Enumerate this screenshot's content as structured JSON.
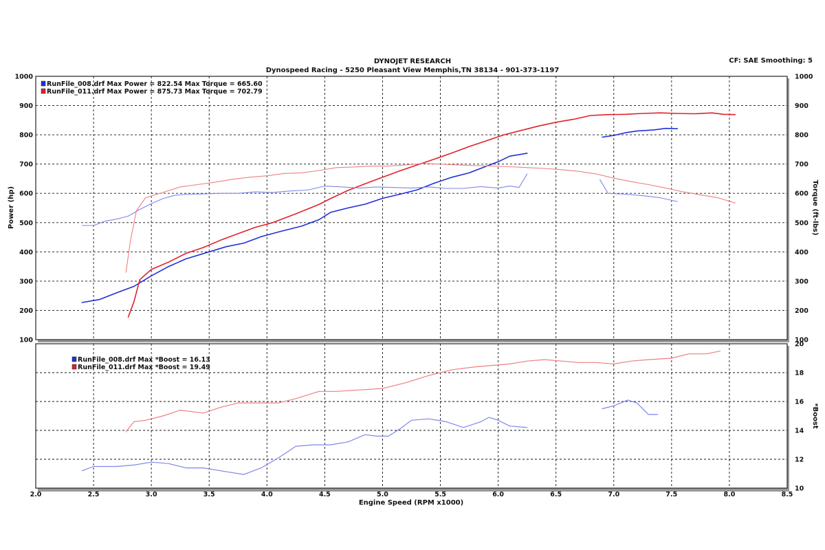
{
  "header": {
    "title": "DYNOJET RESEARCH",
    "subtitle": "Dynospeed  Racing - 5250 Pleasant View Memphis,TN 38134 - 901-373-1197",
    "settings": "CF: SAE  Smoothing: 5"
  },
  "colors": {
    "run008": "#1f2fd6",
    "run011": "#e0202a",
    "run008_light": "#7f86e8",
    "run011_light": "#ee7f7f"
  },
  "chart_data": [
    {
      "type": "line",
      "panel": "power-torque",
      "ylabel": "Power (hp)",
      "y2label": "Torque (ft-lbs)",
      "xlim": [
        2.0,
        8.5
      ],
      "ylim": [
        100,
        1000
      ],
      "y2lim": [
        100,
        1000
      ],
      "yticks": [
        "100",
        "200",
        "300",
        "400",
        "500",
        "600",
        "700",
        "800",
        "900",
        "1000"
      ],
      "grid": true,
      "legend": [
        {
          "text": "RunFile_008.drf Max Power = 822.54      Max Torque = 665.60",
          "color": "#1f2fd6"
        },
        {
          "text": "RunFile_011.drf Max Power = 875.73      Max Torque = 702.79",
          "color": "#e0202a"
        }
      ],
      "series": [
        {
          "name": "RunFile_008.drf Power",
          "color": "#1f2fd6",
          "width": 1.6,
          "segments": [
            [
              [
                2.4,
                227
              ],
              [
                2.55,
                237
              ],
              [
                2.7,
                260
              ],
              [
                2.85,
                282
              ],
              [
                3.0,
                318
              ],
              [
                3.15,
                350
              ],
              [
                3.3,
                376
              ],
              [
                3.5,
                400
              ],
              [
                3.65,
                418
              ],
              [
                3.8,
                430
              ],
              [
                3.95,
                452
              ],
              [
                4.1,
                468
              ],
              [
                4.3,
                488
              ],
              [
                4.45,
                510
              ],
              [
                4.55,
                535
              ],
              [
                4.7,
                550
              ],
              [
                4.85,
                563
              ],
              [
                5.0,
                583
              ],
              [
                5.15,
                597
              ],
              [
                5.3,
                612
              ],
              [
                5.45,
                635
              ],
              [
                5.6,
                655
              ],
              [
                5.75,
                670
              ],
              [
                5.9,
                693
              ],
              [
                6.0,
                708
              ],
              [
                6.1,
                727
              ],
              [
                6.25,
                737
              ]
            ],
            [
              [
                6.9,
                792
              ],
              [
                7.0,
                798
              ],
              [
                7.1,
                807
              ],
              [
                7.2,
                813
              ],
              [
                7.35,
                817
              ],
              [
                7.45,
                822
              ],
              [
                7.55,
                821
              ]
            ]
          ]
        },
        {
          "name": "RunFile_011.drf Power",
          "color": "#e0202a",
          "width": 1.6,
          "segments": [
            [
              [
                2.8,
                177
              ],
              [
                2.85,
                230
              ],
              [
                2.9,
                305
              ],
              [
                3.0,
                340
              ],
              [
                3.15,
                365
              ],
              [
                3.3,
                395
              ],
              [
                3.45,
                415
              ],
              [
                3.6,
                440
              ],
              [
                3.75,
                462
              ],
              [
                3.9,
                484
              ],
              [
                4.05,
                500
              ],
              [
                4.25,
                530
              ],
              [
                4.45,
                562
              ],
              [
                4.55,
                582
              ],
              [
                4.7,
                610
              ],
              [
                4.85,
                633
              ],
              [
                5.0,
                655
              ],
              [
                5.15,
                677
              ],
              [
                5.3,
                697
              ],
              [
                5.45,
                717
              ],
              [
                5.6,
                738
              ],
              [
                5.75,
                760
              ],
              [
                5.9,
                780
              ],
              [
                6.05,
                800
              ],
              [
                6.2,
                815
              ],
              [
                6.35,
                830
              ],
              [
                6.5,
                843
              ],
              [
                6.65,
                853
              ],
              [
                6.8,
                866
              ],
              [
                6.95,
                869
              ],
              [
                7.1,
                870
              ],
              [
                7.25,
                873
              ],
              [
                7.4,
                875
              ],
              [
                7.55,
                873
              ],
              [
                7.7,
                872
              ],
              [
                7.85,
                875
              ],
              [
                7.95,
                870
              ],
              [
                8.05,
                869
              ]
            ]
          ]
        },
        {
          "name": "RunFile_008.drf Torque",
          "color": "#7f86e8",
          "width": 1.1,
          "segments": [
            [
              [
                2.4,
                490
              ],
              [
                2.5,
                490
              ],
              [
                2.6,
                505
              ],
              [
                2.7,
                512
              ],
              [
                2.8,
                522
              ],
              [
                2.9,
                545
              ],
              [
                3.0,
                565
              ],
              [
                3.1,
                582
              ],
              [
                3.2,
                593
              ],
              [
                3.3,
                597
              ],
              [
                3.45,
                598
              ],
              [
                3.6,
                600
              ],
              [
                3.75,
                600
              ],
              [
                3.9,
                605
              ],
              [
                4.05,
                603
              ],
              [
                4.2,
                608
              ],
              [
                4.35,
                611
              ],
              [
                4.5,
                625
              ],
              [
                4.65,
                622
              ],
              [
                4.8,
                618
              ],
              [
                4.95,
                622
              ],
              [
                5.1,
                620
              ],
              [
                5.25,
                618
              ],
              [
                5.4,
                622
              ],
              [
                5.55,
                617
              ],
              [
                5.7,
                617
              ],
              [
                5.85,
                623
              ],
              [
                6.0,
                618
              ],
              [
                6.1,
                625
              ],
              [
                6.18,
                620
              ],
              [
                6.25,
                666
              ]
            ],
            [
              [
                6.88,
                647
              ],
              [
                6.95,
                600
              ],
              [
                7.1,
                597
              ],
              [
                7.25,
                592
              ],
              [
                7.4,
                585
              ],
              [
                7.55,
                572
              ]
            ]
          ]
        },
        {
          "name": "RunFile_011.drf Torque",
          "color": "#ee7f7f",
          "width": 1.1,
          "segments": [
            [
              [
                2.78,
                330
              ],
              [
                2.82,
                440
              ],
              [
                2.87,
                540
              ],
              [
                2.95,
                585
              ],
              [
                3.1,
                603
              ],
              [
                3.25,
                622
              ],
              [
                3.4,
                630
              ],
              [
                3.55,
                638
              ],
              [
                3.7,
                648
              ],
              [
                3.85,
                655
              ],
              [
                4.0,
                660
              ],
              [
                4.15,
                668
              ],
              [
                4.3,
                670
              ],
              [
                4.45,
                678
              ],
              [
                4.6,
                688
              ],
              [
                4.75,
                690
              ],
              [
                4.9,
                693
              ],
              [
                5.05,
                693
              ],
              [
                5.2,
                697
              ],
              [
                5.35,
                702
              ],
              [
                5.5,
                700
              ],
              [
                5.65,
                697
              ],
              [
                5.8,
                695
              ],
              [
                5.95,
                693
              ],
              [
                6.1,
                691
              ],
              [
                6.25,
                688
              ],
              [
                6.4,
                685
              ],
              [
                6.55,
                681
              ],
              [
                6.7,
                675
              ],
              [
                6.85,
                666
              ],
              [
                7.0,
                652
              ],
              [
                7.15,
                640
              ],
              [
                7.3,
                630
              ],
              [
                7.45,
                618
              ],
              [
                7.6,
                605
              ],
              [
                7.75,
                595
              ],
              [
                7.9,
                585
              ],
              [
                8.05,
                567
              ]
            ]
          ]
        }
      ]
    },
    {
      "type": "line",
      "panel": "boost",
      "xlabel": "Engine Speed (RPM x1000)",
      "ylabel": "*Boost",
      "xlim": [
        2.0,
        8.5
      ],
      "ylim": [
        10,
        20
      ],
      "xticks": [
        "2.0",
        "2.5",
        "3.0",
        "3.5",
        "4.0",
        "4.5",
        "5.0",
        "5.5",
        "6.0",
        "6.5",
        "7.0",
        "7.5",
        "8.0",
        "8.5"
      ],
      "yticks": [
        "10",
        "12",
        "14",
        "16",
        "18",
        "20"
      ],
      "grid": true,
      "legend": [
        {
          "text": "RunFile_008.drf Max *Boost = 16.13",
          "color": "#1f2fd6"
        },
        {
          "text": "RunFile_011.drf Max *Boost = 19.49",
          "color": "#e0202a"
        }
      ],
      "series": [
        {
          "name": "RunFile_008.drf *Boost",
          "color": "#7f86e8",
          "width": 1.2,
          "segments": [
            [
              [
                2.4,
                11.2
              ],
              [
                2.5,
                11.5
              ],
              [
                2.7,
                11.5
              ],
              [
                2.85,
                11.6
              ],
              [
                3.0,
                11.8
              ],
              [
                3.15,
                11.7
              ],
              [
                3.3,
                11.4
              ],
              [
                3.45,
                11.4
              ],
              [
                3.6,
                11.2
              ],
              [
                3.8,
                10.95
              ],
              [
                3.95,
                11.4
              ],
              [
                4.1,
                12.1
              ],
              [
                4.25,
                12.9
              ],
              [
                4.4,
                13.0
              ],
              [
                4.55,
                13.0
              ],
              [
                4.7,
                13.2
              ],
              [
                4.85,
                13.7
              ],
              [
                4.95,
                13.6
              ],
              [
                5.05,
                13.6
              ],
              [
                5.15,
                14.1
              ],
              [
                5.25,
                14.7
              ],
              [
                5.4,
                14.8
              ],
              [
                5.55,
                14.6
              ],
              [
                5.7,
                14.2
              ],
              [
                5.85,
                14.6
              ],
              [
                5.92,
                14.9
              ],
              [
                6.0,
                14.7
              ],
              [
                6.1,
                14.3
              ],
              [
                6.25,
                14.2
              ]
            ],
            [
              [
                6.9,
                15.5
              ],
              [
                7.0,
                15.7
              ],
              [
                7.12,
                16.1
              ],
              [
                7.2,
                15.9
              ],
              [
                7.3,
                15.1
              ],
              [
                7.38,
                15.1
              ]
            ]
          ]
        },
        {
          "name": "RunFile_011.drf *Boost",
          "color": "#ee7f7f",
          "width": 1.2,
          "segments": [
            [
              [
                2.78,
                13.9
              ],
              [
                2.85,
                14.6
              ],
              [
                2.95,
                14.7
              ],
              [
                3.1,
                15.0
              ],
              [
                3.25,
                15.4
              ],
              [
                3.45,
                15.2
              ],
              [
                3.6,
                15.6
              ],
              [
                3.75,
                15.9
              ],
              [
                3.9,
                15.9
              ],
              [
                4.1,
                15.9
              ],
              [
                4.25,
                16.2
              ],
              [
                4.45,
                16.7
              ],
              [
                4.6,
                16.7
              ],
              [
                4.8,
                16.8
              ],
              [
                5.0,
                16.9
              ],
              [
                5.2,
                17.3
              ],
              [
                5.4,
                17.8
              ],
              [
                5.6,
                18.2
              ],
              [
                5.8,
                18.4
              ],
              [
                5.95,
                18.5
              ],
              [
                6.1,
                18.6
              ],
              [
                6.25,
                18.8
              ],
              [
                6.4,
                18.9
              ],
              [
                6.55,
                18.8
              ],
              [
                6.7,
                18.7
              ],
              [
                6.85,
                18.7
              ],
              [
                7.0,
                18.6
              ],
              [
                7.15,
                18.8
              ],
              [
                7.3,
                18.9
              ],
              [
                7.5,
                19.0
              ],
              [
                7.65,
                19.3
              ],
              [
                7.8,
                19.3
              ],
              [
                7.92,
                19.49
              ]
            ]
          ]
        }
      ]
    }
  ]
}
